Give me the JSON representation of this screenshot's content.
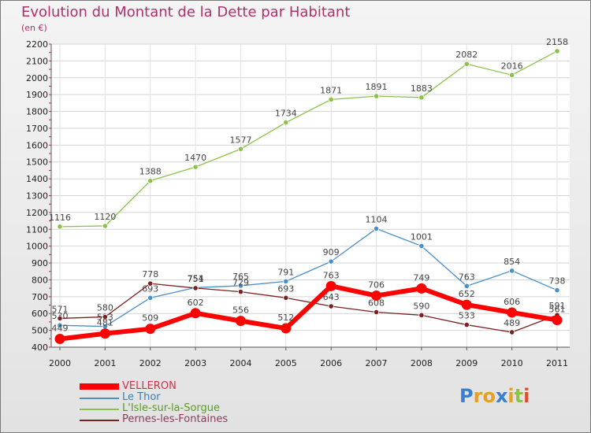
{
  "chart_data": {
    "type": "line",
    "title": "Evolution du Montant de la Dette par Habitant",
    "subtitle": "(en €)",
    "xlabel": "",
    "ylabel": "",
    "ylim": [
      400,
      2200
    ],
    "y_ticks": [
      400,
      500,
      600,
      700,
      800,
      900,
      1000,
      1100,
      1200,
      1300,
      1400,
      1500,
      1600,
      1700,
      1800,
      1900,
      2000,
      2100,
      2200
    ],
    "categories": [
      "2000",
      "2001",
      "2002",
      "2003",
      "2004",
      "2005",
      "2006",
      "2007",
      "2008",
      "2009",
      "2010",
      "2011"
    ],
    "series": [
      {
        "name": "VELLERON",
        "color": "#ff0000",
        "values": [
          449,
          481,
          509,
          602,
          556,
          512,
          763,
          706,
          749,
          652,
          606,
          561
        ]
      },
      {
        "name": "Le Thor",
        "color": "#4a90c8",
        "values": [
          530,
          523,
          693,
          754,
          765,
          791,
          909,
          1104,
          1001,
          763,
          854,
          738
        ]
      },
      {
        "name": "L'Isle-sur-la-Sorgue",
        "color": "#8bc34a",
        "values": [
          1116,
          1120,
          1388,
          1470,
          1577,
          1734,
          1871,
          1891,
          1883,
          2082,
          2016,
          2158
        ]
      },
      {
        "name": "Pernes-les-Fontaines",
        "color": "#7a2121",
        "values": [
          571,
          580,
          778,
          751,
          729,
          693,
          643,
          608,
          590,
          533,
          489,
          591
        ]
      }
    ]
  },
  "brand": {
    "text": "Proxiti"
  }
}
